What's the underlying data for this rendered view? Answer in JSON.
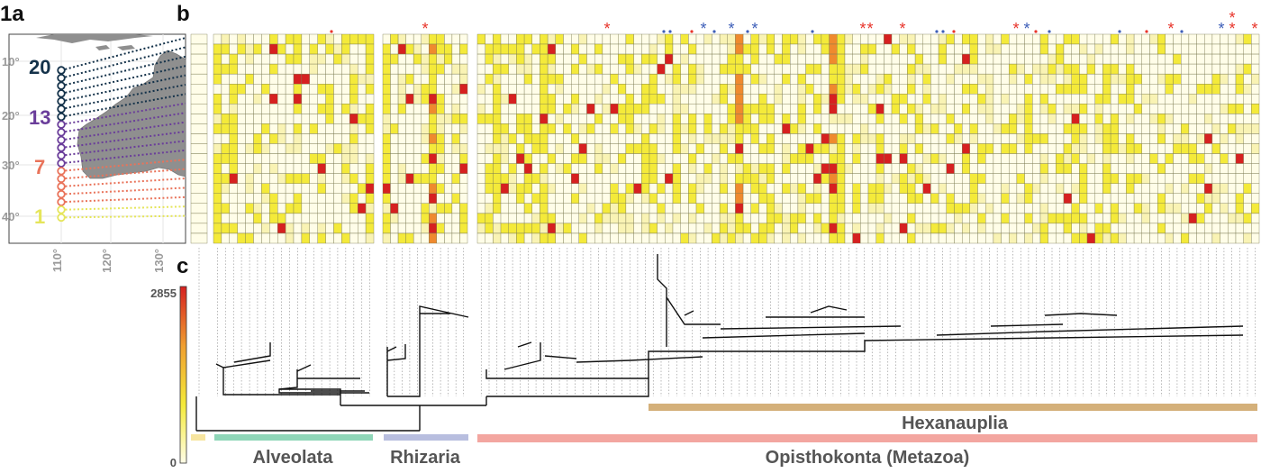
{
  "panels": {
    "a": "1a",
    "b": "b",
    "c": "c"
  },
  "map": {
    "lat_labels": [
      "10°",
      "20°",
      "30°",
      "40°"
    ],
    "lon_labels": [
      "110°",
      "120°",
      "130°"
    ],
    "station_groups": [
      {
        "label": "20",
        "color": "#14324a"
      },
      {
        "label": "13",
        "color": "#6a3d9a"
      },
      {
        "label": "7",
        "color": "#e9735a"
      },
      {
        "label": "1",
        "color": "#e5e55a"
      }
    ]
  },
  "colorbar": {
    "max_label": "2855",
    "min_label": "0",
    "colors": [
      "#fffde8",
      "#f4ea3a",
      "#f0a030",
      "#d62020"
    ]
  },
  "groups": [
    {
      "name": "",
      "color": "#f7e5a0"
    },
    {
      "name": "Alveolata",
      "color": "#8fd6b8"
    },
    {
      "name": "Rhizaria",
      "color": "#b8bedf"
    },
    {
      "name": "Opisthokonta (Metazoa)",
      "color": "#f3a6a0"
    },
    {
      "name": "Hexanauplia",
      "color": "#d4b07a"
    }
  ],
  "marker_colors": {
    "red": "#e8342a",
    "blue": "#3d5eb8"
  }
}
